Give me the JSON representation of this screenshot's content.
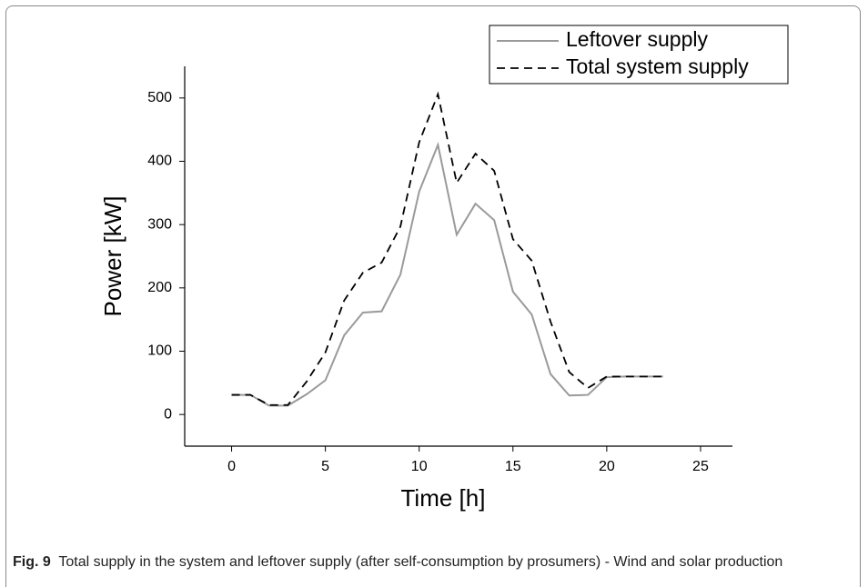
{
  "chart_data": {
    "type": "line",
    "x": [
      0,
      1,
      2,
      3,
      4,
      5,
      6,
      7,
      8,
      9,
      10,
      11,
      12,
      13,
      14,
      15,
      16,
      17,
      18,
      19,
      20,
      21,
      22,
      23
    ],
    "series": [
      {
        "name": "Leftover supply",
        "color": "#9a9a9a",
        "style": "solid",
        "values": [
          31,
          31,
          14,
          14,
          32,
          54,
          125,
          161,
          163,
          221,
          352,
          426,
          284,
          333,
          307,
          194,
          158,
          64,
          30,
          31,
          59,
          60,
          60,
          60
        ]
      },
      {
        "name": "Total system supply",
        "color": "#000000",
        "style": "dashed",
        "values": [
          31,
          31,
          15,
          15,
          52,
          98,
          180,
          224,
          240,
          297,
          430,
          506,
          366,
          412,
          385,
          277,
          243,
          147,
          67,
          42,
          60,
          60,
          60,
          60
        ]
      }
    ],
    "xlabel": "Time [h]",
    "ylabel": "Power [kW]",
    "xlim": [
      -2.5,
      26.7
    ],
    "xticks": [
      0,
      5,
      10,
      15,
      20,
      25
    ],
    "ylim": [
      -50,
      550
    ],
    "yticks": [
      0,
      100,
      200,
      300,
      400,
      500
    ],
    "legend": "upper right",
    "grid": false
  },
  "caption": {
    "label": "Fig. 9",
    "text": "Total supply in the system and leftover supply (after self-consumption by prosumers) - Wind and solar production"
  }
}
